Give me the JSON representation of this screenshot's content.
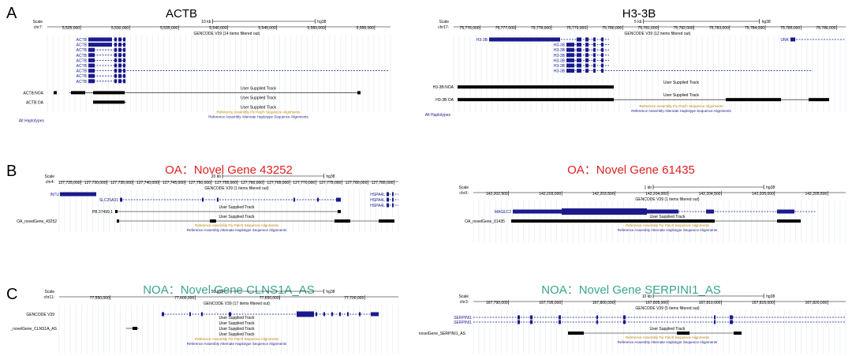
{
  "colors": {
    "gene": "#1a1a8c",
    "track": "#000000",
    "fix_patch": "#b8860b",
    "alt_haplotype": "#1a1a8c",
    "title_red": "#e02020",
    "title_green": "#3aa58c",
    "grid": "#dde4ee"
  },
  "panel_labels": [
    "A",
    "B",
    "C"
  ],
  "common": {
    "scale_label": "Scale",
    "assembly": "hg38",
    "user_track": "User Supplied Track",
    "fix_patch": "Reference Assembly Fix Patch Sequence Alignments",
    "alt_haplotype": "Reference Assembly Alternate Haplotype Sequence Alignments",
    "alt_haplotypes_label": "Alt Haplotypes"
  },
  "tracks": [
    {
      "id": "actb",
      "title": "ACTB",
      "title_color": "title",
      "chrom": "chr7:",
      "scale_bar": "10 kb",
      "ticks": [
        "5,525,000",
        "5,530,000",
        "5,535,000",
        "5,540,000",
        "5,545,000",
        "5,550,000",
        "5,555,000"
      ],
      "gencode": "GENCODE V39 (14 items filtered out)",
      "genes": [
        {
          "label": "ACTB",
          "kind": "main"
        },
        {
          "label": "ACTB",
          "kind": "main"
        },
        {
          "label": "ACTB",
          "kind": "short"
        },
        {
          "label": "ACTB",
          "kind": "short"
        },
        {
          "label": "ACTB",
          "kind": "short"
        },
        {
          "label": "ACTB",
          "kind": "short"
        },
        {
          "label": "ACTB",
          "kind": "long"
        },
        {
          "label": "ACTB",
          "kind": "short"
        },
        {
          "label": "ACTB",
          "kind": "short"
        }
      ],
      "user_tracks": [
        {
          "label": "ACTB:NOA"
        },
        {
          "label": "ACTB:OA"
        }
      ],
      "show_alt_label": true
    },
    {
      "id": "h33b",
      "title": "H3-3B",
      "title_color": "title",
      "chrom": "chr17:",
      "scale_bar": "5 kb",
      "ticks": [
        "75,776,000",
        "75,777,000",
        "75,778,000",
        "75,779,000",
        "75,780,000",
        "75,781,000",
        "75,782,000",
        "75,783,000",
        "75,784,000",
        "75,785,000",
        "75,786,000"
      ],
      "gencode": "GENCODE V39 (12 items filtered out)",
      "genes": [
        {
          "label": "H3-3B",
          "kind": "main"
        },
        {
          "label": "H3-3B",
          "kind": "short"
        },
        {
          "label": "H3-3B",
          "kind": "short"
        },
        {
          "label": "H3-3B",
          "kind": "short"
        },
        {
          "label": "H3-3B",
          "kind": "short"
        },
        {
          "label": "H3-3B",
          "kind": "short"
        },
        {
          "label": "H3-3B",
          "kind": "long"
        }
      ],
      "extra_gene": "UNK",
      "user_tracks": [
        {
          "label": "H3-3B:NOA"
        },
        {
          "label": "H3-3B:OA"
        }
      ],
      "show_alt_label": true
    },
    {
      "id": "oa43252",
      "title": "OA：Novel Gene  43252",
      "title_color": "red",
      "chrom": "chr4:",
      "scale_bar": "20 kb",
      "ticks": [
        "127,725,000",
        "127,730,000",
        "127,735,000",
        "127,740,000",
        "127,745,000",
        "127,750,000",
        "127,755,000",
        "127,760,000",
        "127,765,000",
        "127,770,000",
        "127,775,000",
        "127,780,000",
        "127,785,000"
      ],
      "gencode": "GENCODE V39 (1 items filtered out)",
      "genes": [
        {
          "label": "INTU",
          "kind": "intu"
        },
        {
          "label": "SLC25A31",
          "kind": "slc"
        }
      ],
      "side_genes": [
        "HSPA4L",
        "HSPA4L",
        "HSPA4L"
      ],
      "ps_label": "PB.37499.1",
      "user_tracks": [
        {
          "label": "OA_novelGene_43252"
        }
      ],
      "show_alt_label": false
    },
    {
      "id": "oa61435",
      "title": "OA：Novel Gene 61435",
      "title_color": "red",
      "chrom": "chrX:",
      "scale_bar": "1 kb",
      "ticks": [
        "142,202,500",
        "142,203,000",
        "142,203,500",
        "142,204,000",
        "142,204,500",
        "142,205,000",
        "142,205,500"
      ],
      "gencode": "GENCODE V39 (1 items filtered out)",
      "genes": [
        {
          "label": "MAGEC2",
          "kind": "magec"
        }
      ],
      "user_tracks": [
        {
          "label": "OA_novelGene_61435"
        }
      ],
      "show_alt_label": false
    },
    {
      "id": "noaclns",
      "title": "NOA：Novel Gene CLNS1A_AS",
      "title_color": "green",
      "chrom": "chr11:",
      "scale_bar": "50 kb",
      "ticks": [
        "77,550,000",
        "77,600,000",
        "77,650,000",
        "77,700,000"
      ],
      "gencode": "GENCODE V39 (17 items filtered out)",
      "gencode_label": "GENCODE V39",
      "genes": [],
      "user_tracks": [
        {
          "label": "_novelGene_CLNS1A_AS"
        }
      ],
      "show_alt_label": false
    },
    {
      "id": "noaserpini",
      "title": "NOA：Novel Gene SERPINI1_AS",
      "title_color": "green",
      "chrom": "chr3:",
      "scale_bar": "10 kb",
      "ticks": [
        "167,790,000",
        "167,795,000",
        "167,800,000",
        "167,805,000",
        "167,810,000",
        "167,815,000",
        "167,820,000"
      ],
      "gencode": "GENCODE V39 (5 items filtered out)",
      "genes": [
        {
          "label": "SERPINI1",
          "kind": "serp"
        },
        {
          "label": "SERPINI1",
          "kind": "serp"
        }
      ],
      "user_tracks": [
        {
          "label": "novelGene_SERPINI1_AS"
        }
      ],
      "show_alt_label": false
    }
  ]
}
